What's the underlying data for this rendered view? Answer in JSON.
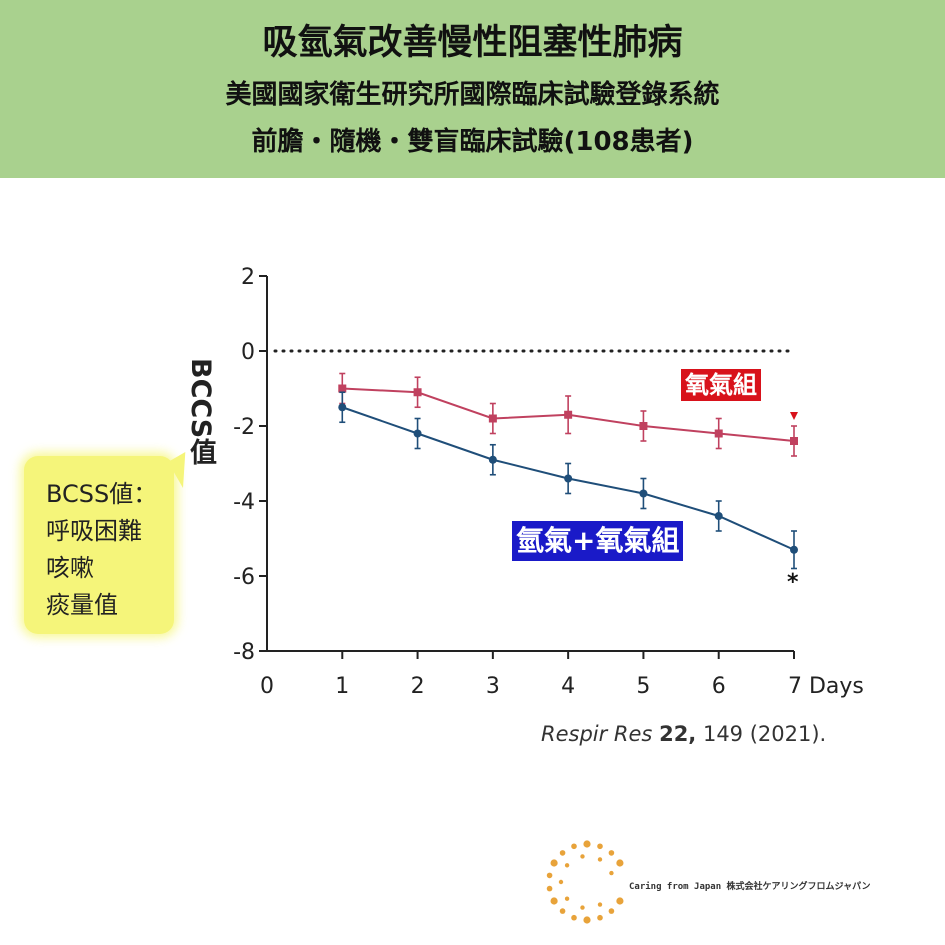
{
  "header": {
    "title": "吸氫氣改善慢性阻塞性肺病",
    "subtitle1": "美國國家衛生研究所國際臨床試驗登錄系統",
    "subtitle2": "前膽・隨機・雙盲臨床試驗(108患者)"
  },
  "chart_data": {
    "type": "line",
    "x": [
      1,
      2,
      3,
      4,
      5,
      6,
      7
    ],
    "xticks": [
      "0",
      "1",
      "2",
      "3",
      "4",
      "5",
      "6",
      "7 Days"
    ],
    "yticks": [
      "2",
      "0",
      "-2",
      "-4",
      "-6",
      "-8"
    ],
    "xlim": [
      0,
      7
    ],
    "ylim": [
      -8,
      2
    ],
    "ylabel": "BCCS值",
    "reference_line_y": 0,
    "series": [
      {
        "name": "氧氣組",
        "color": "#c0415f",
        "marker": "square",
        "values": [
          -1.0,
          -1.1,
          -1.8,
          -1.7,
          -2.0,
          -2.2,
          -2.4
        ],
        "errors": [
          0.4,
          0.4,
          0.4,
          0.5,
          0.4,
          0.4,
          0.4
        ]
      },
      {
        "name": "氫氣+氧氣組",
        "color": "#1f4e79",
        "marker": "circle",
        "values": [
          -1.5,
          -2.2,
          -2.9,
          -3.4,
          -3.8,
          -4.4,
          -5.3
        ],
        "errors": [
          0.4,
          0.4,
          0.4,
          0.4,
          0.4,
          0.4,
          0.5
        ]
      }
    ],
    "annotations": [
      "*",
      "▼"
    ]
  },
  "labels": {
    "o2_group": "氧氣組",
    "h2_group": "氫氣+氧氣組",
    "star": "*"
  },
  "callout": {
    "lines": [
      "BCSS値：",
      "呼吸困難",
      "咳嗽",
      "痰量值"
    ]
  },
  "citation": {
    "journal": "Respir Res",
    "volume": "22,",
    "rest": " 149 (2021)."
  },
  "logo": {
    "text": "Caring from Japan 株式会社ケアリングフロムジャパン",
    "color": "#e8a33a"
  }
}
